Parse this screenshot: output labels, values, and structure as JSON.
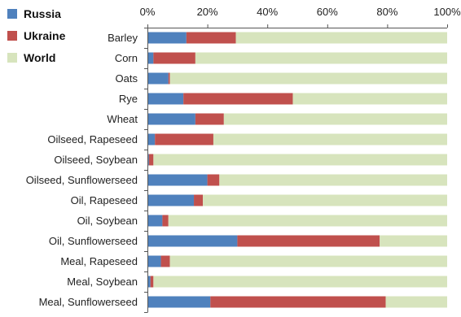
{
  "chart_data": {
    "type": "bar",
    "orientation": "horizontal",
    "stacked": true,
    "x_axis_position": "top",
    "xlim": [
      0,
      100
    ],
    "x_ticks": [
      "0%",
      "20%",
      "40%",
      "60%",
      "80%",
      "100%"
    ],
    "x_tick_values": [
      0,
      20,
      40,
      60,
      80,
      100
    ],
    "legend_placement": "top-left",
    "grid": false,
    "categories": [
      "Barley",
      "Corn",
      "Oats",
      "Rye",
      "Wheat",
      "Oilseed, Rapeseed",
      "Oilseed, Soybean",
      "Oilseed, Sunflowerseed",
      "Oil, Rapeseed",
      "Oil, Soybean",
      "Oil, Sunflowerseed",
      "Meal, Rapeseed",
      "Meal, Soybean",
      "Meal, Sunflowerseed"
    ],
    "series": [
      {
        "name": "Russia",
        "color": "#4f81bd",
        "values": [
          13,
          2,
          7,
          12,
          16,
          2.5,
          0.5,
          20,
          15.5,
          5,
          30,
          4.5,
          1,
          21
        ]
      },
      {
        "name": "Ukraine",
        "color": "#c0504d",
        "values": [
          16.5,
          14,
          0.5,
          36.5,
          9.5,
          19.5,
          1.5,
          4,
          3,
          2,
          47.5,
          3,
          1,
          58.5
        ]
      },
      {
        "name": "World",
        "color": "#d7e4bd",
        "values": [
          70.5,
          84,
          92.5,
          51.5,
          74.5,
          78,
          98,
          76,
          81.5,
          93,
          22.5,
          92.5,
          98,
          20.5
        ]
      }
    ]
  }
}
